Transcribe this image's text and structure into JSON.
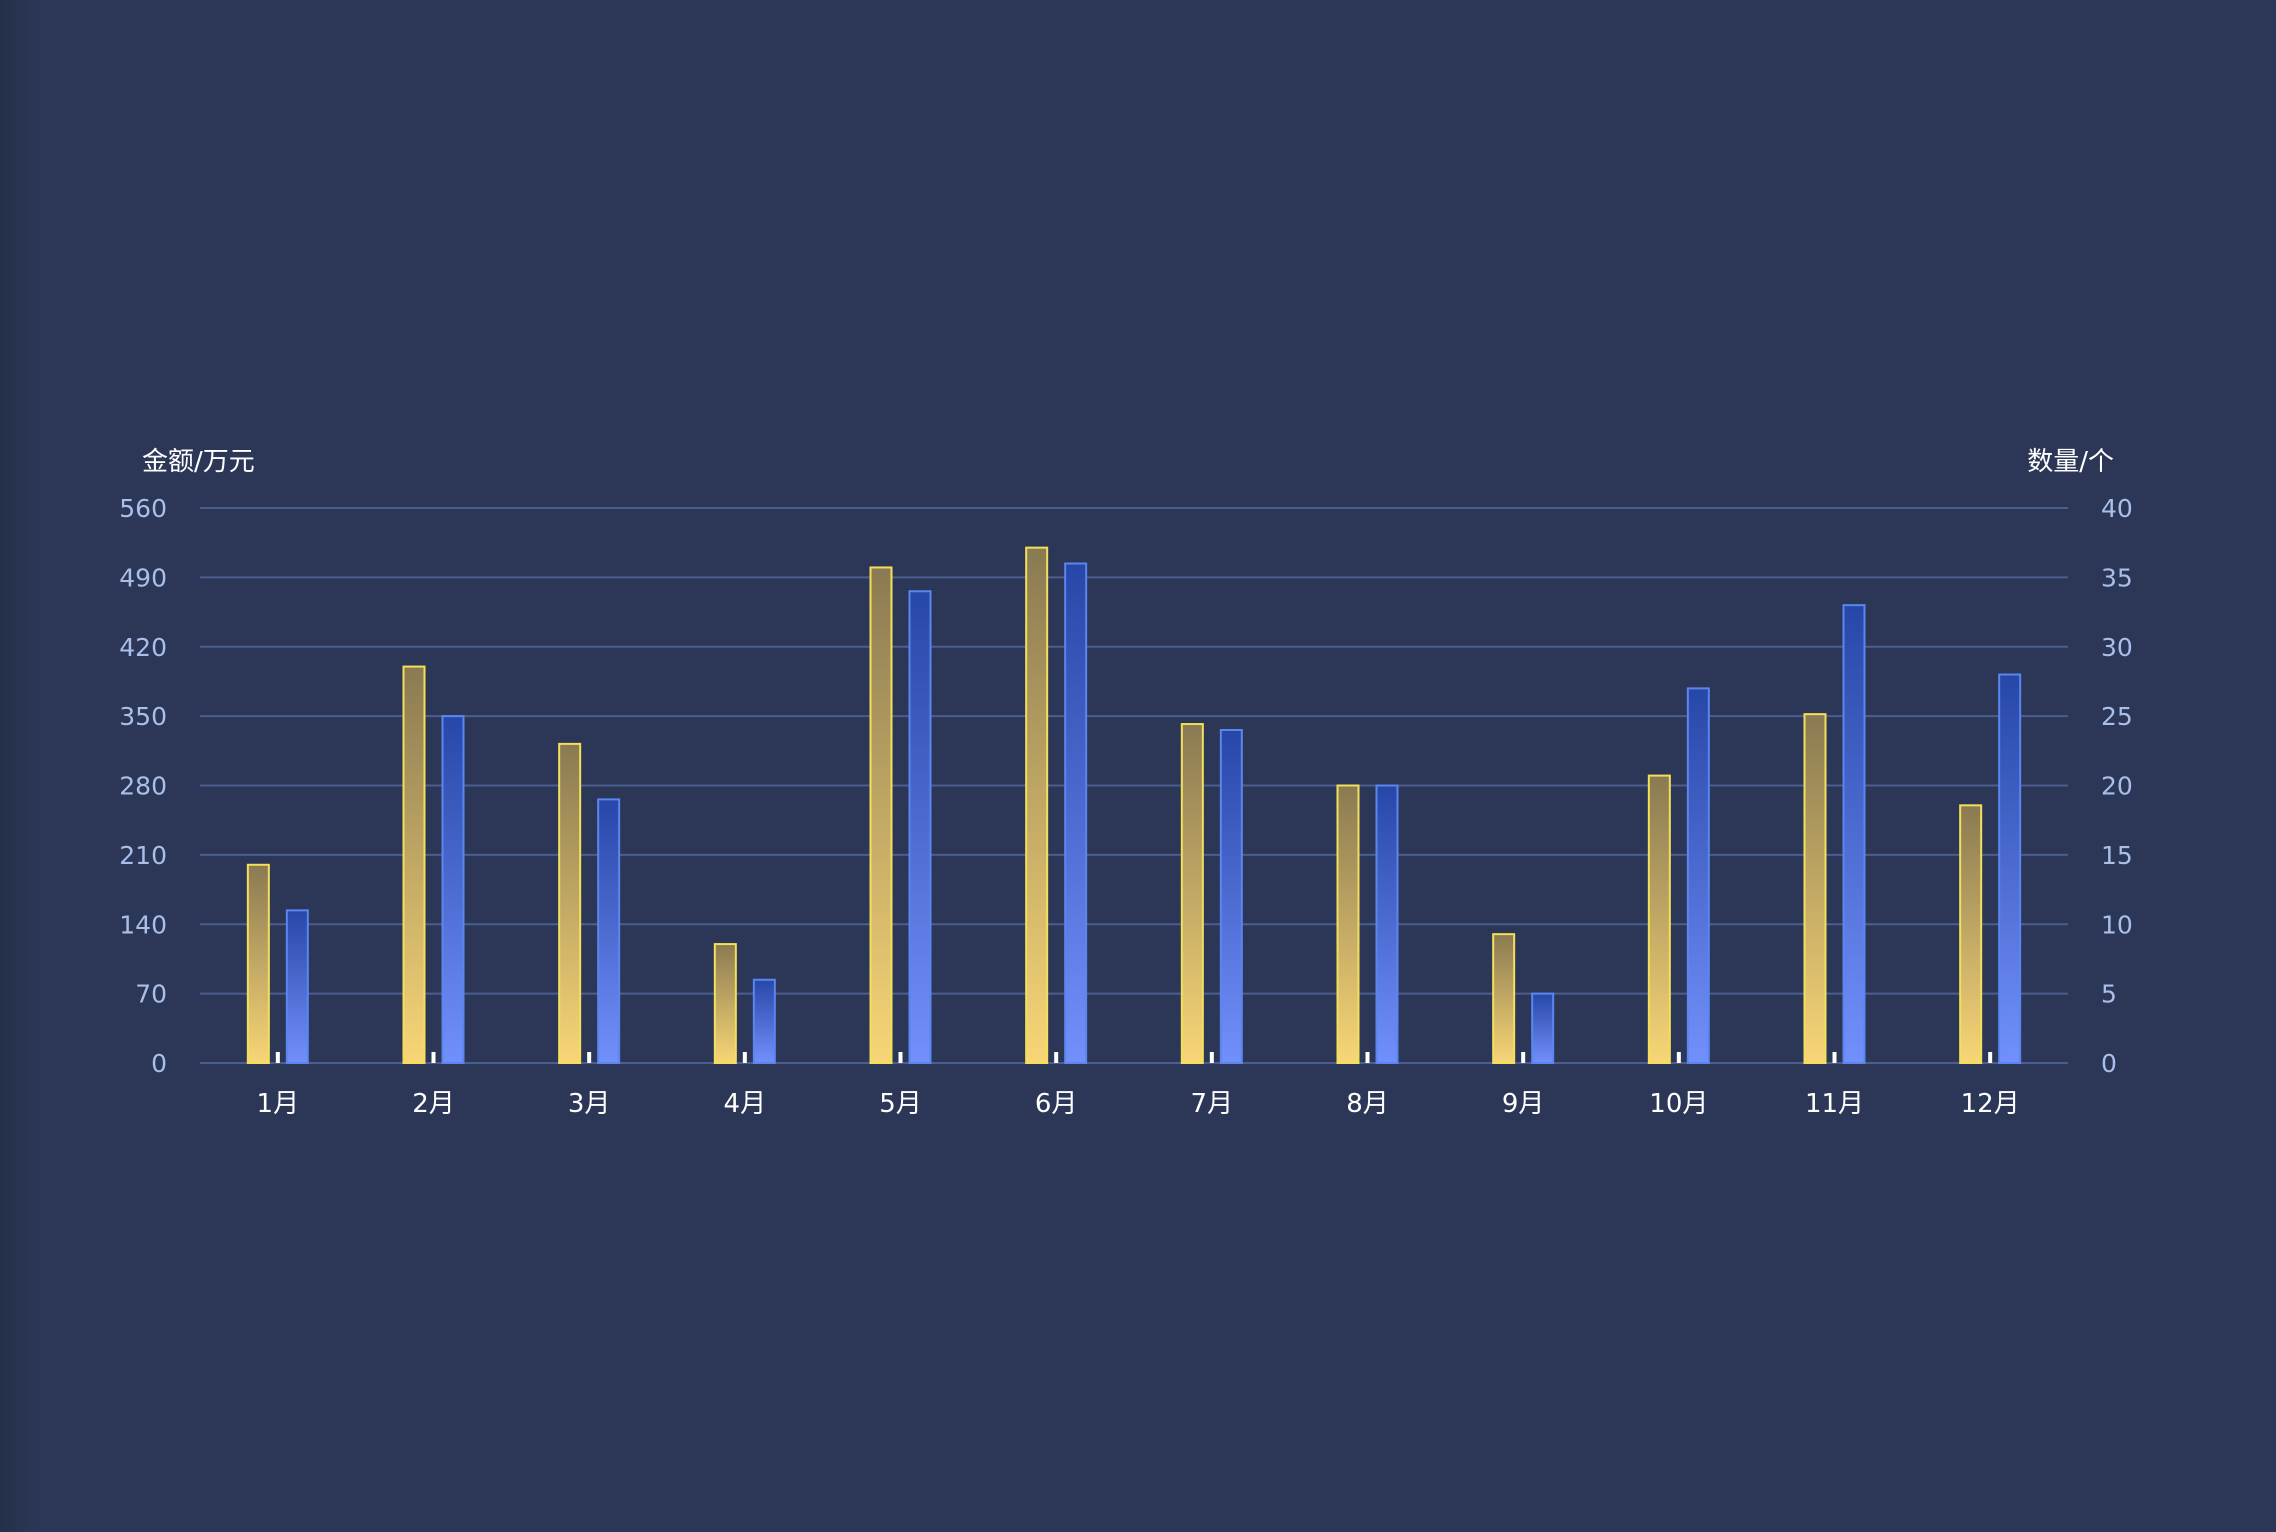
{
  "chart_data": {
    "type": "bar",
    "categories": [
      "1月",
      "2月",
      "3月",
      "4月",
      "5月",
      "6月",
      "7月",
      "8月",
      "9月",
      "10月",
      "11月",
      "12月"
    ],
    "y_left": {
      "label": "金额/万元",
      "min": 0,
      "max": 560,
      "ticks": [
        "0",
        "70",
        "140",
        "210",
        "280",
        "350",
        "420",
        "490",
        "560"
      ]
    },
    "y_right": {
      "label": "数量/个",
      "min": 0,
      "max": 40,
      "ticks": [
        "0",
        "5",
        "10",
        "15",
        "20",
        "25",
        "30",
        "35",
        "40"
      ]
    },
    "series": [
      {
        "axis": "left",
        "color_top": "#8a7a52",
        "color_bottom": "#f8d676",
        "border": "#f3e05a",
        "values": [
          200,
          400,
          322,
          120,
          500,
          520,
          342,
          280,
          130,
          290,
          352,
          260
        ]
      },
      {
        "axis": "right",
        "color_top": "#2747a8",
        "color_bottom": "#7290fb",
        "border": "#5b86f0",
        "values": [
          11,
          25,
          19,
          6,
          34,
          36,
          24,
          20,
          5,
          27,
          33,
          28
        ]
      }
    ],
    "grid": true,
    "legend": "none",
    "colors": {
      "background": "#2c3757",
      "grid": "#4a5e8f",
      "tick_text": "#a9bfe9",
      "label_text": "#ffffff"
    }
  }
}
